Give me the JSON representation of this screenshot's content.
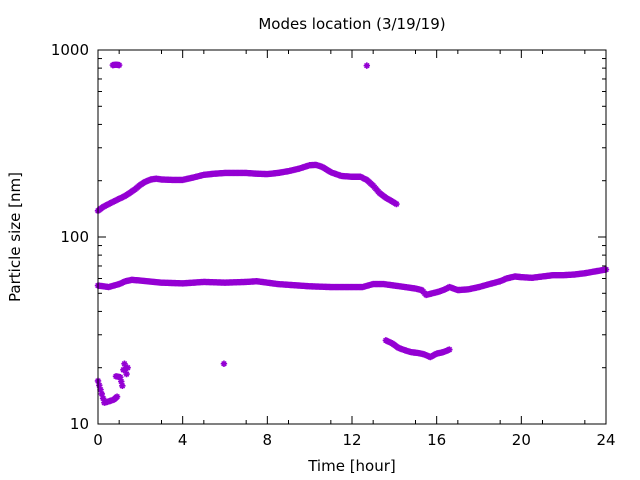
{
  "chart_data": {
    "type": "scatter",
    "title": "Modes location (3/19/19)",
    "xlabel": "Time [hour]",
    "ylabel": "Particle size [nm]",
    "xlim": [
      0,
      24
    ],
    "ylim": [
      10,
      1000
    ],
    "yscale": "log",
    "grid": false,
    "legend": "none",
    "marker_color": "#9400d3",
    "x_ticks": [
      0,
      4,
      8,
      12,
      16,
      20,
      24
    ],
    "x_tick_labels": [
      "0",
      "4",
      "8",
      "12",
      "16",
      "20",
      "24"
    ],
    "y_ticks": [
      10,
      100,
      1000
    ],
    "y_tick_labels": [
      "10",
      "100",
      "1000"
    ],
    "series": [
      {
        "points": [
          [
            0.0,
            138
          ],
          [
            0.25,
            145
          ],
          [
            0.5,
            150
          ],
          [
            0.75,
            155
          ],
          [
            1.0,
            160
          ],
          [
            1.25,
            165
          ],
          [
            1.5,
            172
          ],
          [
            1.75,
            180
          ],
          [
            2.0,
            190
          ],
          [
            2.25,
            198
          ],
          [
            2.5,
            203
          ],
          [
            2.75,
            205
          ],
          [
            3.0,
            203
          ],
          [
            3.5,
            202
          ],
          [
            4.0,
            202
          ],
          [
            4.5,
            208
          ],
          [
            5.0,
            215
          ],
          [
            5.5,
            218
          ],
          [
            6.0,
            220
          ],
          [
            6.5,
            220
          ],
          [
            7.0,
            220
          ],
          [
            7.5,
            218
          ],
          [
            8.0,
            217
          ],
          [
            8.5,
            220
          ],
          [
            9.0,
            225
          ],
          [
            9.5,
            232
          ],
          [
            10.0,
            242
          ],
          [
            10.3,
            243
          ],
          [
            10.6,
            237
          ],
          [
            11.0,
            222
          ],
          [
            11.5,
            212
          ],
          [
            12.0,
            210
          ],
          [
            12.4,
            210
          ],
          [
            12.7,
            202
          ],
          [
            13.0,
            188
          ],
          [
            13.3,
            172
          ],
          [
            13.6,
            162
          ],
          [
            13.9,
            155
          ],
          [
            14.1,
            150
          ],
          [
            0.0,
            55
          ],
          [
            0.5,
            54
          ],
          [
            1.0,
            56
          ],
          [
            1.3,
            58
          ],
          [
            1.6,
            59
          ],
          [
            2.0,
            58.5
          ],
          [
            3.0,
            57
          ],
          [
            4.0,
            56.5
          ],
          [
            5.0,
            57.5
          ],
          [
            6.0,
            57
          ],
          [
            7.0,
            57.5
          ],
          [
            7.5,
            58
          ],
          [
            8.0,
            57
          ],
          [
            8.5,
            56
          ],
          [
            9.0,
            55.5
          ],
          [
            10.0,
            54.5
          ],
          [
            11.0,
            54
          ],
          [
            12.0,
            54
          ],
          [
            12.5,
            54
          ],
          [
            13.0,
            56
          ],
          [
            13.5,
            56
          ],
          [
            14.0,
            55
          ],
          [
            14.5,
            54
          ],
          [
            15.0,
            53
          ],
          [
            15.3,
            52
          ],
          [
            15.5,
            49
          ],
          [
            15.8,
            50
          ],
          [
            16.1,
            51
          ],
          [
            16.4,
            52.5
          ],
          [
            16.6,
            54
          ],
          [
            17.0,
            52
          ],
          [
            17.5,
            52.5
          ],
          [
            18.0,
            54
          ],
          [
            18.5,
            56
          ],
          [
            19.0,
            58
          ],
          [
            19.3,
            60
          ],
          [
            19.7,
            61.5
          ],
          [
            20.0,
            61
          ],
          [
            20.5,
            60.5
          ],
          [
            21.0,
            61.5
          ],
          [
            21.5,
            62.5
          ],
          [
            22.0,
            62.5
          ],
          [
            22.5,
            63
          ],
          [
            23.0,
            64
          ],
          [
            23.5,
            65.5
          ],
          [
            24.0,
            67
          ],
          [
            13.6,
            28
          ],
          [
            13.9,
            27
          ],
          [
            14.2,
            25.5
          ],
          [
            14.5,
            24.8
          ],
          [
            14.8,
            24.2
          ],
          [
            15.1,
            24.0
          ],
          [
            15.4,
            23.6
          ],
          [
            15.7,
            22.8
          ],
          [
            16.0,
            23.8
          ],
          [
            16.3,
            24.2
          ],
          [
            16.6,
            25
          ],
          [
            0.0,
            17
          ],
          [
            0.3,
            13
          ],
          [
            0.5,
            13.2
          ],
          [
            0.75,
            13.5
          ],
          [
            0.9,
            14
          ],
          [
            0.85,
            18
          ],
          [
            1.05,
            17.8
          ],
          [
            1.15,
            16
          ],
          [
            1.2,
            19.5
          ],
          [
            1.25,
            21
          ],
          [
            1.35,
            18.5
          ],
          [
            1.4,
            20
          ],
          [
            5.95,
            21
          ],
          [
            0.7,
            830
          ],
          [
            0.85,
            835
          ],
          [
            1.0,
            830
          ],
          [
            12.7,
            825
          ]
        ]
      }
    ]
  }
}
